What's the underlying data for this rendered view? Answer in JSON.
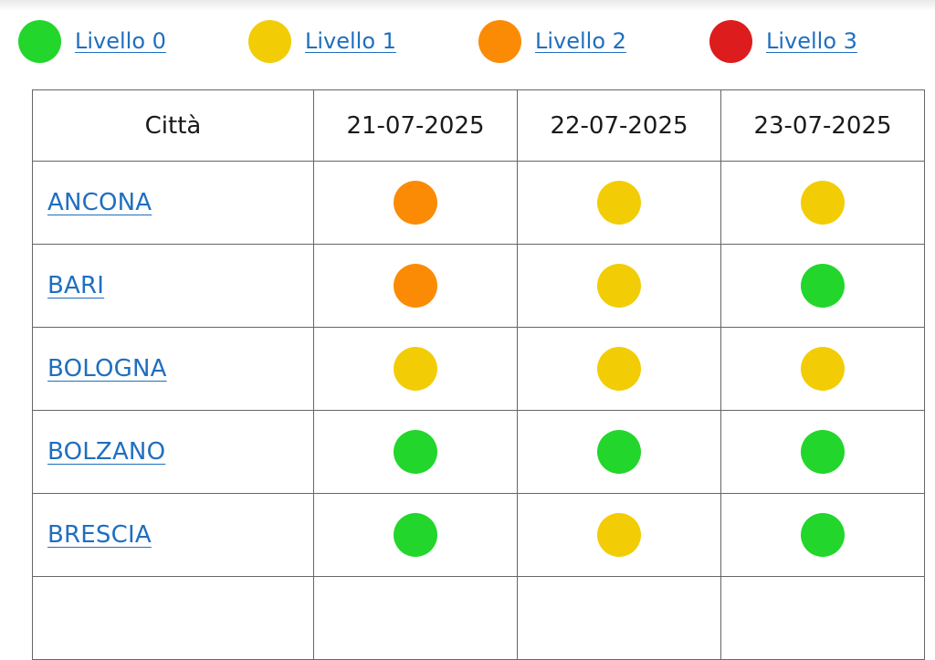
{
  "colors": {
    "level0": "#22d62b",
    "level1": "#f2cd06",
    "level2": "#fb8b05",
    "level3": "#dd1c1e",
    "link": "#1f6fbf"
  },
  "legend": [
    {
      "label": "Livello 0",
      "level": 0
    },
    {
      "label": "Livello 1",
      "level": 1
    },
    {
      "label": "Livello 2",
      "level": 2
    },
    {
      "label": "Livello 3",
      "level": 3
    }
  ],
  "table": {
    "headers": [
      "Città",
      "21-07-2025",
      "22-07-2025",
      "23-07-2025"
    ],
    "rows": [
      {
        "city": "ANCONA",
        "levels": [
          2,
          1,
          1
        ]
      },
      {
        "city": "BARI",
        "levels": [
          2,
          1,
          0
        ]
      },
      {
        "city": "BOLOGNA",
        "levels": [
          1,
          1,
          1
        ]
      },
      {
        "city": "BOLZANO",
        "levels": [
          0,
          0,
          0
        ]
      },
      {
        "city": "BRESCIA",
        "levels": [
          0,
          1,
          0
        ]
      },
      {
        "city": "",
        "levels": []
      }
    ]
  }
}
